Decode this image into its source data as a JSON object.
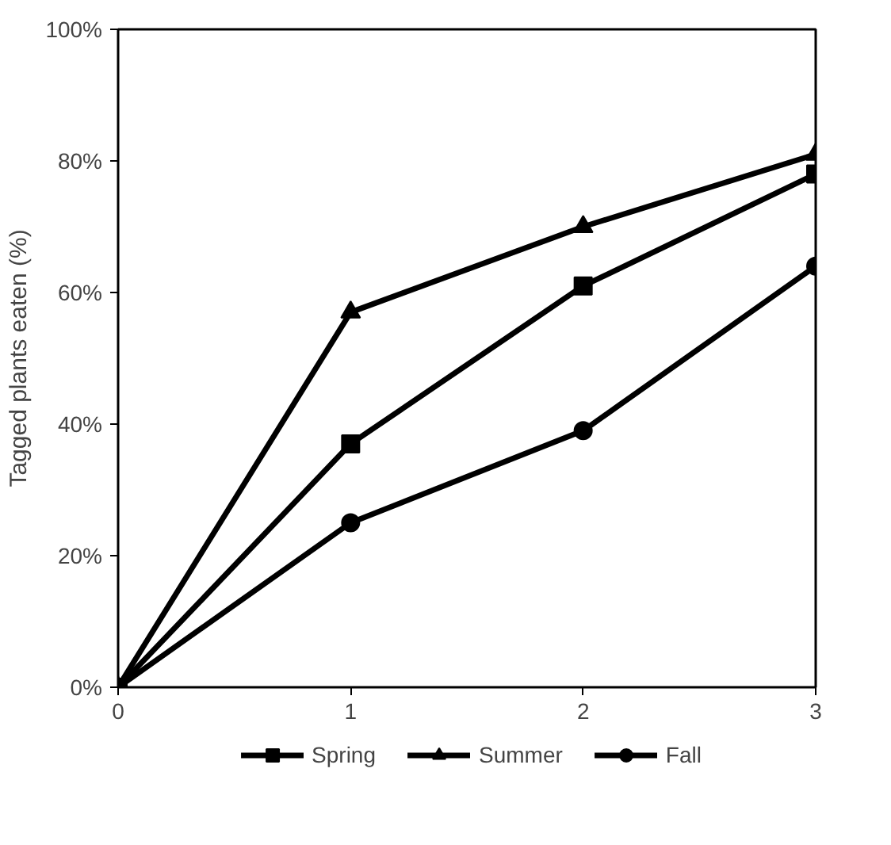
{
  "chart_data": {
    "type": "line",
    "ylabel": "Tagged plants eaten (%)",
    "x": [
      0,
      1,
      2,
      3
    ],
    "series": [
      {
        "name": "Spring",
        "color": "#000000",
        "marker": "square",
        "values": [
          0,
          37,
          61,
          78
        ]
      },
      {
        "name": "Summer",
        "color": "#000000",
        "marker": "triangle",
        "values": [
          0,
          57,
          70,
          81
        ]
      },
      {
        "name": "Fall",
        "color": "#000000",
        "marker": "circle",
        "values": [
          0,
          25,
          39,
          64
        ]
      }
    ],
    "xlim": [
      0,
      3
    ],
    "ylim": [
      0,
      100
    ],
    "xticks": [
      0,
      1,
      2,
      3
    ],
    "yticks": [
      {
        "value": 0,
        "label": "0%"
      },
      {
        "value": 20,
        "label": "20%"
      },
      {
        "value": 40,
        "label": "40%"
      },
      {
        "value": 60,
        "label": "60%"
      },
      {
        "value": 80,
        "label": "80%"
      },
      {
        "value": 100,
        "label": "100%"
      }
    ],
    "grid": false,
    "legend": "bottom",
    "line_style": "solid"
  }
}
